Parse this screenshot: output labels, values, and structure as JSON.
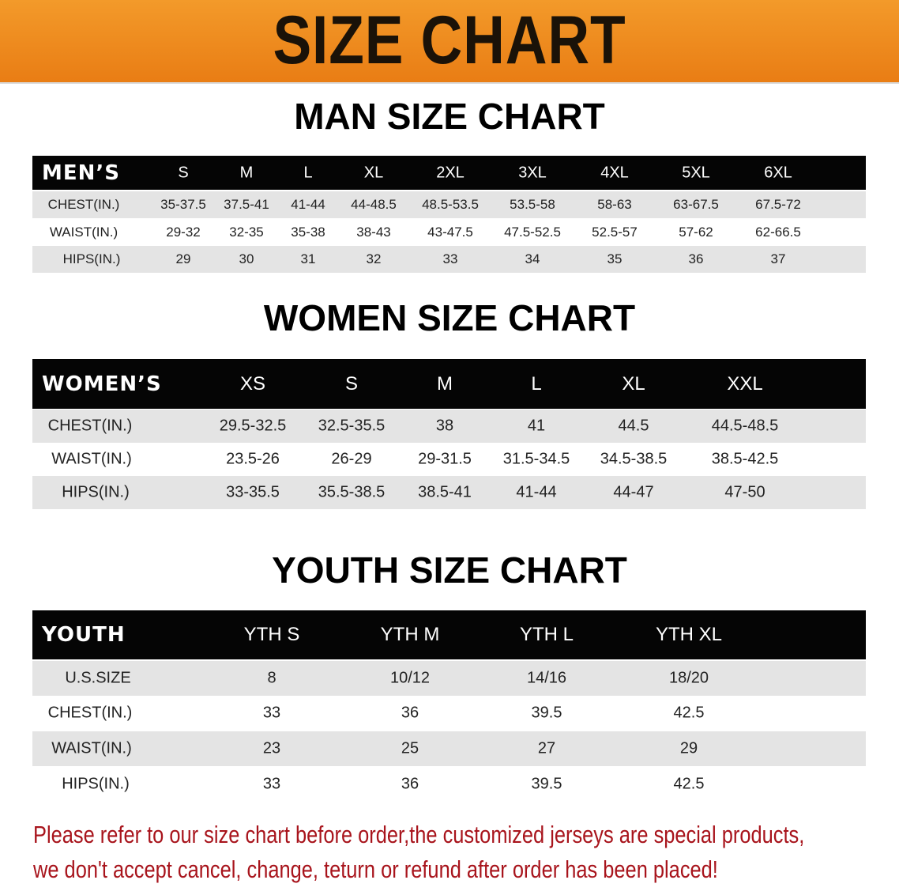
{
  "banner_title": "SIZE CHART",
  "men": {
    "title": "MAN SIZE CHART",
    "header_label": "MEN’S",
    "sizes": [
      "S",
      "M",
      "L",
      "XL",
      "2XL",
      "3XL",
      "4XL",
      "5XL",
      "6XL"
    ],
    "rows": [
      {
        "label": "CHEST(IN.)",
        "values": [
          "35-37.5",
          "37.5-41",
          "41-44",
          "44-48.5",
          "48.5-53.5",
          "53.5-58",
          "58-63",
          "63-67.5",
          "67.5-72"
        ]
      },
      {
        "label": "WAIST(IN.)",
        "values": [
          "29-32",
          "32-35",
          "35-38",
          "38-43",
          "43-47.5",
          "47.5-52.5",
          "52.5-57",
          "57-62",
          "62-66.5"
        ]
      },
      {
        "label": "HIPS(IN.)",
        "values": [
          "29",
          "30",
          "31",
          "32",
          "33",
          "34",
          "35",
          "36",
          "37"
        ]
      }
    ]
  },
  "women": {
    "title": "WOMEN SIZE CHART",
    "header_label": "WOMEN’S",
    "sizes": [
      "XS",
      "S",
      "M",
      "L",
      "XL",
      "XXL"
    ],
    "rows": [
      {
        "label": "CHEST(IN.)",
        "values": [
          "29.5-32.5",
          "32.5-35.5",
          "38",
          "41",
          "44.5",
          "44.5-48.5"
        ]
      },
      {
        "label": "WAIST(IN.)",
        "values": [
          "23.5-26",
          "26-29",
          "29-31.5",
          "31.5-34.5",
          "34.5-38.5",
          "38.5-42.5"
        ]
      },
      {
        "label": "HIPS(IN.)",
        "values": [
          "33-35.5",
          "35.5-38.5",
          "38.5-41",
          "41-44",
          "44-47",
          "47-50"
        ]
      }
    ]
  },
  "youth": {
    "title": "YOUTH SIZE CHART",
    "header_label": "YOUTH",
    "sizes": [
      "YTH S",
      "YTH M",
      "YTH L",
      "YTH XL"
    ],
    "rows": [
      {
        "label": "U.S.SIZE",
        "values": [
          "8",
          "10/12",
          "14/16",
          "18/20"
        ]
      },
      {
        "label": "CHEST(IN.)",
        "values": [
          "33",
          "36",
          "39.5",
          "42.5"
        ]
      },
      {
        "label": "WAIST(IN.)",
        "values": [
          "23",
          "25",
          "27",
          "29"
        ]
      },
      {
        "label": "HIPS(IN.)",
        "values": [
          "33",
          "36",
          "39.5",
          "42.5"
        ]
      }
    ]
  },
  "note": {
    "line1": "Please refer to our size chart before order,the customized jerseys are special products,",
    "line2": "we don't accept cancel, change, teturn or refund after order has been placed!"
  },
  "colors": {
    "banner": "#ef8a1e",
    "header_bg": "#050505",
    "row_gray": "#e4e4e4",
    "note": "#a8141c"
  }
}
